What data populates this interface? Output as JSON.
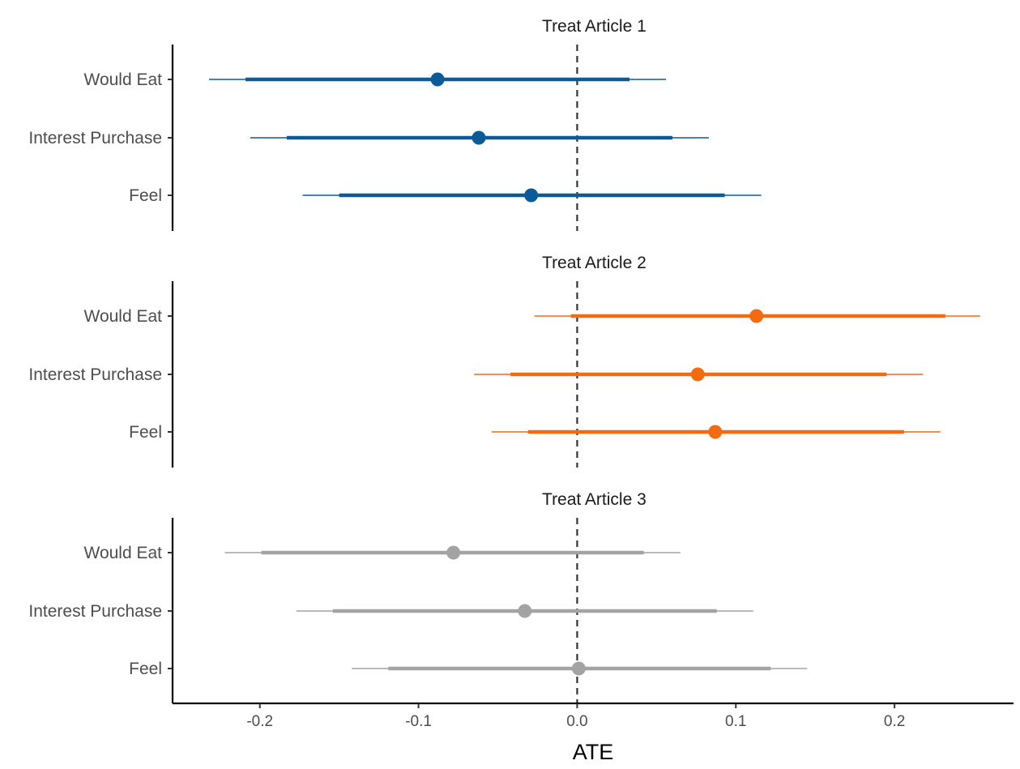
{
  "chart_data": {
    "type": "forest",
    "xlabel": "ATE",
    "xlim": [
      -0.255,
      0.275
    ],
    "xticks": [
      -0.2,
      -0.1,
      0.0,
      0.1,
      0.2
    ],
    "xtick_labels": [
      "-0.2",
      "-0.1",
      "0.0",
      "0.1",
      "0.2"
    ],
    "reference_line": 0.0,
    "grid": false,
    "categories": [
      "Would Eat",
      "Interest Purchase",
      "Feel"
    ],
    "facets": [
      {
        "title": "Treat Article 1",
        "color": "#0c5a97",
        "rows": [
          {
            "label": "Would Eat",
            "estimate": -0.088,
            "ci_inner": [
              -0.209,
              0.033
            ],
            "ci_outer": [
              -0.232,
              0.056
            ]
          },
          {
            "label": "Interest Purchase",
            "estimate": -0.062,
            "ci_inner": [
              -0.183,
              0.06
            ],
            "ci_outer": [
              -0.206,
              0.083
            ]
          },
          {
            "label": "Feel",
            "estimate": -0.029,
            "ci_inner": [
              -0.15,
              0.093
            ],
            "ci_outer": [
              -0.173,
              0.116
            ]
          }
        ]
      },
      {
        "title": "Treat Article 2",
        "color": "#f26b10",
        "rows": [
          {
            "label": "Would Eat",
            "estimate": 0.113,
            "ci_inner": [
              -0.004,
              0.232
            ],
            "ci_outer": [
              -0.027,
              0.254
            ]
          },
          {
            "label": "Interest Purchase",
            "estimate": 0.076,
            "ci_inner": [
              -0.042,
              0.195
            ],
            "ci_outer": [
              -0.065,
              0.218
            ]
          },
          {
            "label": "Feel",
            "estimate": 0.087,
            "ci_inner": [
              -0.031,
              0.206
            ],
            "ci_outer": [
              -0.054,
              0.229
            ]
          }
        ]
      },
      {
        "title": "Treat Article 3",
        "color": "#a3a3a3",
        "rows": [
          {
            "label": "Would Eat",
            "estimate": -0.078,
            "ci_inner": [
              -0.199,
              0.042
            ],
            "ci_outer": [
              -0.222,
              0.065
            ]
          },
          {
            "label": "Interest Purchase",
            "estimate": -0.033,
            "ci_inner": [
              -0.154,
              0.088
            ],
            "ci_outer": [
              -0.177,
              0.111
            ]
          },
          {
            "label": "Feel",
            "estimate": 0.001,
            "ci_inner": [
              -0.119,
              0.122
            ],
            "ci_outer": [
              -0.142,
              0.145
            ]
          }
        ]
      }
    ]
  }
}
